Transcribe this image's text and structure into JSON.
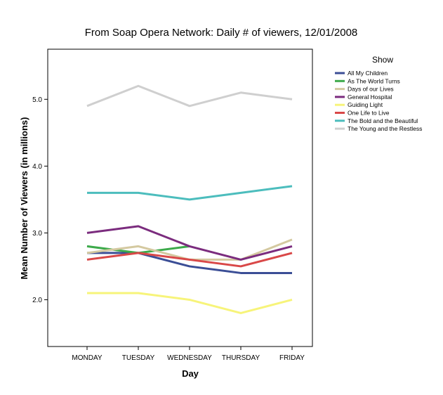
{
  "chart_data": {
    "type": "line",
    "title": "From Soap Opera Network:  Daily # of viewers, 12/01/2008",
    "xlabel": "Day",
    "ylabel": "Mean Number of Viewers (in millions)",
    "categories": [
      "MONDAY",
      "TUESDAY",
      "WEDNESDAY",
      "THURSDAY",
      "FRIDAY"
    ],
    "ylim": [
      1.3,
      5.75
    ],
    "yticks": [
      2.0,
      3.0,
      4.0,
      5.0
    ],
    "ytick_labels": [
      "2.0",
      "3.0",
      "4.0",
      "5.0"
    ],
    "grid": false,
    "legend": {
      "title": "Show",
      "placement": "right"
    },
    "series": [
      {
        "name": "All My Children",
        "color": "#3B4E96",
        "values": [
          2.7,
          2.7,
          2.5,
          2.4,
          2.4
        ]
      },
      {
        "name": "As The World Turns",
        "color": "#3DAA4B",
        "values": [
          2.8,
          2.7,
          2.8,
          null,
          null
        ]
      },
      {
        "name": "Days of our Lives",
        "color": "#D4C9A0",
        "values": [
          2.7,
          2.8,
          2.6,
          2.6,
          2.9
        ]
      },
      {
        "name": "General Hospital",
        "color": "#7B2C7E",
        "values": [
          3.0,
          3.1,
          2.8,
          2.6,
          2.8
        ]
      },
      {
        "name": "Guiding Light",
        "color": "#F7F47A",
        "values": [
          2.1,
          2.1,
          2.0,
          1.8,
          2.0
        ]
      },
      {
        "name": "One Life to Live",
        "color": "#D94848",
        "values": [
          2.6,
          2.7,
          2.6,
          2.5,
          2.7
        ]
      },
      {
        "name": "The Bold and the Beautiful",
        "color": "#4CBDBD",
        "values": [
          3.6,
          3.6,
          3.5,
          3.6,
          3.7
        ]
      },
      {
        "name": "The Young and the Restless",
        "color": "#CFCFCF",
        "values": [
          4.9,
          5.2,
          4.9,
          5.1,
          5.0
        ]
      }
    ]
  }
}
